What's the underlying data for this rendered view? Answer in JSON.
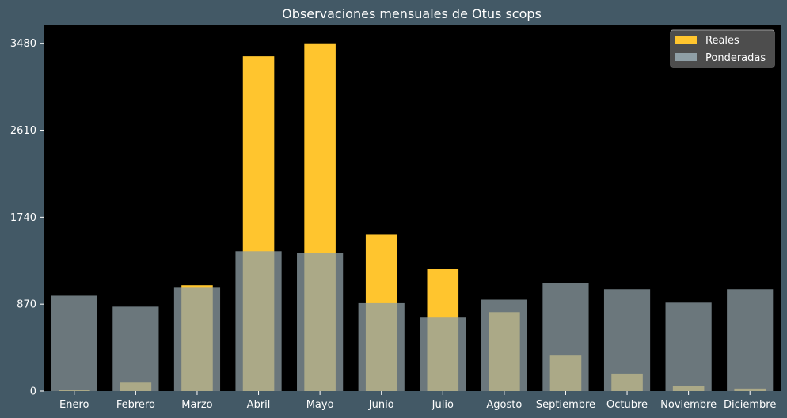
{
  "chart_data": {
    "type": "bar",
    "title": "Observaciones mensuales de Otus scops",
    "xlabel": "",
    "ylabel": "",
    "categories": [
      "Enero",
      "Febrero",
      "Marzo",
      "Abril",
      "Mayo",
      "Junio",
      "Julio",
      "Agosto",
      "Septiembre",
      "Octubre",
      "Noviembre",
      "Diciembre"
    ],
    "series": [
      {
        "name": "Reales",
        "color": "#ffc52e",
        "values": [
          14,
          85,
          1060,
          3350,
          3480,
          1565,
          1220,
          790,
          355,
          175,
          55,
          25
        ]
      },
      {
        "name": "Ponderadas",
        "color": "#8f9fa6",
        "values": [
          955,
          845,
          1035,
          1400,
          1385,
          880,
          735,
          915,
          1085,
          1020,
          885,
          1020
        ]
      }
    ],
    "yticks": [
      0,
      870,
      1740,
      2610,
      3480
    ],
    "ylim": [
      0,
      3660
    ],
    "grid": false,
    "legend_position": "top-right",
    "background": "#435966",
    "plot_background": "#000000"
  }
}
